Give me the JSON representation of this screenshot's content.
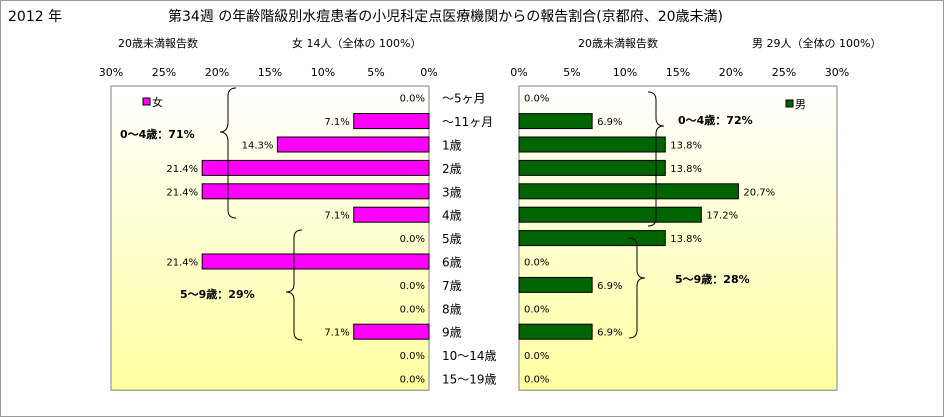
{
  "title": {
    "year": "2012 年",
    "main": "第34週 の年齢階級別水痘患者の小児科定点医療機関からの報告割合(京都府、20歳未満)"
  },
  "subheaders": {
    "left_label": "20歳未満報告数",
    "left_count": "女 14人（全体の 100%）",
    "right_label": "20歳未満報告数",
    "right_count": "男 29人（全体の 100%）"
  },
  "colors": {
    "female": "#ff00ff",
    "male": "#006400",
    "plot_top": "#ffffff",
    "plot_bottom": "#ffffa0"
  },
  "annotations": {
    "female_0_4": "0～4歳：71%",
    "female_5_9": "5～9歳：29%",
    "male_0_4": "0～4歳：72%",
    "male_5_9": "5～9歳：28%"
  },
  "chart_data": [
    {
      "type": "bar",
      "orientation": "horizontal",
      "direction": "right-to-left",
      "legend": [
        "女"
      ],
      "legend_position": "top-left",
      "xlim": [
        0,
        30
      ],
      "ticks": [
        "30%",
        "25%",
        "20%",
        "15%",
        "10%",
        "5%",
        "0%"
      ],
      "categories": [
        "～5ヶ月",
        "～11ヶ月",
        "1歳",
        "2歳",
        "3歳",
        "4歳",
        "5歳",
        "6歳",
        "7歳",
        "8歳",
        "9歳",
        "10～14歳",
        "15～19歳"
      ],
      "series": [
        {
          "name": "女",
          "values": [
            0.0,
            7.1,
            14.3,
            21.4,
            21.4,
            7.1,
            0.0,
            21.4,
            0.0,
            0.0,
            7.1,
            0.0,
            0.0
          ],
          "labels": [
            "0.0%",
            "7.1%",
            "14.3%",
            "21.4%",
            "21.4%",
            "7.1%",
            "0.0%",
            "21.4%",
            "0.0%",
            "0.0%",
            "7.1%",
            "0.0%",
            "0.0%"
          ]
        }
      ]
    },
    {
      "type": "bar",
      "orientation": "horizontal",
      "direction": "left-to-right",
      "legend": [
        "男"
      ],
      "legend_position": "top-right",
      "xlim": [
        0,
        30
      ],
      "ticks": [
        "0%",
        "5%",
        "10%",
        "15%",
        "20%",
        "25%",
        "30%"
      ],
      "categories": [
        "～5ヶ月",
        "～11ヶ月",
        "1歳",
        "2歳",
        "3歳",
        "4歳",
        "5歳",
        "6歳",
        "7歳",
        "8歳",
        "9歳",
        "10～14歳",
        "15～19歳"
      ],
      "series": [
        {
          "name": "男",
          "values": [
            0.0,
            6.9,
            13.8,
            13.8,
            20.7,
            17.2,
            13.8,
            0.0,
            6.9,
            0.0,
            6.9,
            0.0,
            0.0
          ],
          "labels": [
            "0.0%",
            "6.9%",
            "13.8%",
            "13.8%",
            "20.7%",
            "17.2%",
            "13.8%",
            "0.0%",
            "6.9%",
            "0.0%",
            "6.9%",
            "0.0%",
            "0.0%"
          ]
        }
      ]
    }
  ]
}
